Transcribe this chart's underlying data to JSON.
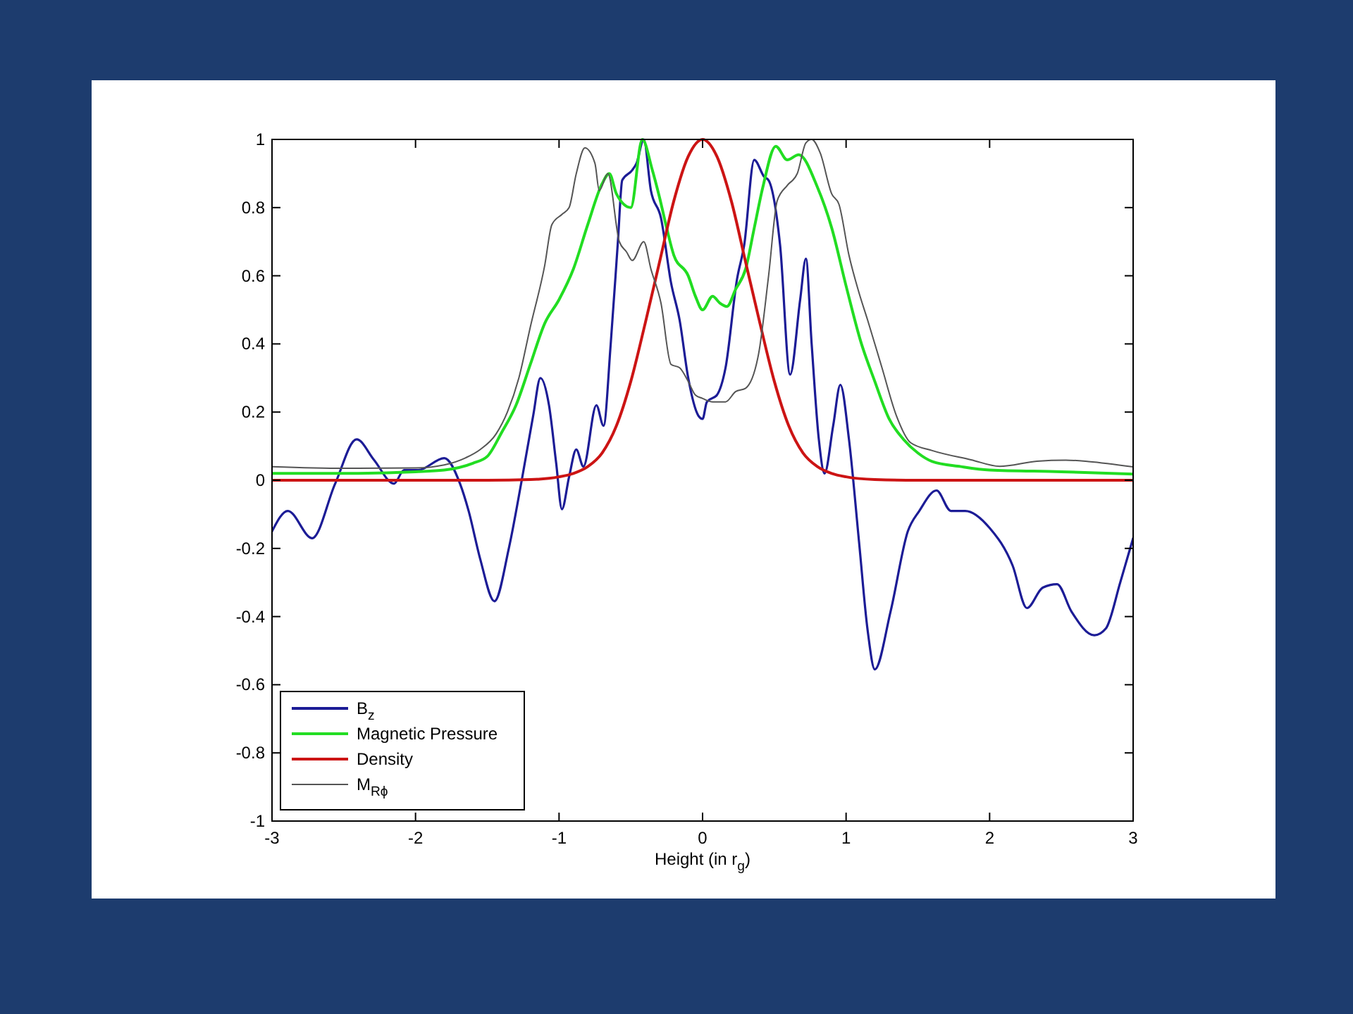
{
  "chart_data": {
    "type": "line",
    "xlabel": "Height (in r$_{g}$)",
    "xlim": [
      -3,
      3
    ],
    "ylim": [
      -1,
      1
    ],
    "xticks": [
      -3,
      -2,
      -1,
      0,
      1,
      2,
      3
    ],
    "yticks": [
      -1,
      -0.8,
      -0.6,
      -0.4,
      -0.2,
      0,
      0.2,
      0.4,
      0.6,
      0.8,
      1
    ],
    "legend": "bottom left",
    "series": [
      {
        "name": "B$_{z}$",
        "color": "#1c1c96",
        "x": [
          -3,
          -2.89,
          -2.72,
          -2.56,
          -2.41,
          -2.29,
          -2.15,
          -2.08,
          -1.98,
          -1.8,
          -1.69,
          -1.63,
          -1.55,
          -1.45,
          -1.35,
          -1.26,
          -1.18,
          -1.13,
          -1.07,
          -1.02,
          -0.98,
          -0.93,
          -0.88,
          -0.83,
          -0.74,
          -0.69,
          -0.64,
          -0.59,
          -0.56,
          -0.49,
          -0.46,
          -0.41,
          -0.36,
          -0.29,
          -0.22,
          -0.16,
          -0.1,
          -0.03,
          0,
          0.03,
          0.1,
          0.16,
          0.24,
          0.29,
          0.36,
          0.43,
          0.46,
          0.54,
          0.61,
          0.68,
          0.72,
          0.76,
          0.81,
          0.85,
          0.91,
          0.96,
          1.02,
          1.09,
          1.15,
          1.2,
          1.31,
          1.43,
          1.51,
          1.63,
          1.73,
          1.83,
          2,
          2.16,
          2.26,
          2.37,
          2.47,
          2.57,
          2.73,
          2.81,
          2.91,
          3
        ],
        "values": [
          -0.15,
          -0.09,
          -0.17,
          -0.01,
          0.12,
          0.06,
          -0.01,
          0.03,
          0.03,
          0.065,
          -0.01,
          -0.09,
          -0.23,
          -0.355,
          -0.2,
          0,
          0.19,
          0.3,
          0.22,
          0.05,
          -0.085,
          0.01,
          0.09,
          0.04,
          0.22,
          0.16,
          0.4,
          0.7,
          0.88,
          0.91,
          0.93,
          1,
          0.85,
          0.77,
          0.58,
          0.47,
          0.3,
          0.19,
          0.18,
          0.23,
          0.25,
          0.33,
          0.59,
          0.69,
          0.94,
          0.89,
          0.88,
          0.69,
          0.31,
          0.53,
          0.65,
          0.4,
          0.12,
          0.02,
          0.16,
          0.28,
          0.12,
          -0.18,
          -0.44,
          -0.555,
          -0.385,
          -0.15,
          -0.09,
          -0.03,
          -0.09,
          -0.09,
          -0.14,
          -0.25,
          -0.375,
          -0.315,
          -0.305,
          -0.385,
          -0.455,
          -0.435,
          -0.3,
          -0.17
        ]
      },
      {
        "name": "Magnetic Pressure",
        "color": "#22dd22",
        "x": [
          -3,
          -2.5,
          -2,
          -1.8,
          -1.6,
          -1.5,
          -1.4,
          -1.3,
          -1.2,
          -1.1,
          -1,
          -0.9,
          -0.8,
          -0.7,
          -0.65,
          -0.6,
          -0.5,
          -0.42,
          -0.35,
          -0.3,
          -0.25,
          -0.2,
          -0.1,
          -0.05,
          0,
          0.07,
          0.12,
          0.17,
          0.23,
          0.3,
          0.36,
          0.42,
          0.51,
          0.59,
          0.67,
          0.8,
          0.9,
          1,
          1.1,
          1.2,
          1.3,
          1.4,
          1.5,
          1.6,
          1.8,
          2,
          2.5,
          3
        ],
        "values": [
          0.02,
          0.02,
          0.025,
          0.03,
          0.05,
          0.07,
          0.14,
          0.22,
          0.34,
          0.46,
          0.53,
          0.62,
          0.75,
          0.87,
          0.9,
          0.84,
          0.8,
          1,
          0.91,
          0.83,
          0.74,
          0.66,
          0.6,
          0.54,
          0.5,
          0.54,
          0.52,
          0.51,
          0.56,
          0.62,
          0.74,
          0.86,
          0.98,
          0.94,
          0.955,
          0.86,
          0.74,
          0.57,
          0.41,
          0.29,
          0.18,
          0.12,
          0.08,
          0.055,
          0.04,
          0.03,
          0.025,
          0.018
        ]
      },
      {
        "name": "Density",
        "color": "#cc1414",
        "x": [
          -3,
          -2,
          -1.5,
          -1.2,
          -1,
          -0.9,
          -0.8,
          -0.7,
          -0.6,
          -0.5,
          -0.4,
          -0.3,
          -0.2,
          -0.1,
          0,
          0.1,
          0.2,
          0.3,
          0.4,
          0.5,
          0.6,
          0.7,
          0.8,
          0.9,
          1,
          1.2,
          1.5,
          2,
          3
        ],
        "values": [
          0,
          0,
          0,
          0.002,
          0.01,
          0.02,
          0.04,
          0.08,
          0.16,
          0.29,
          0.46,
          0.64,
          0.82,
          0.95,
          1,
          0.95,
          0.82,
          0.64,
          0.46,
          0.29,
          0.16,
          0.08,
          0.04,
          0.02,
          0.01,
          0.002,
          0,
          0,
          0
        ]
      },
      {
        "name": "M$_{Rϕ}$",
        "color": "#555555",
        "x": [
          -3,
          -2.5,
          -2,
          -1.8,
          -1.65,
          -1.55,
          -1.44,
          -1.36,
          -1.28,
          -1.2,
          -1.1,
          -1.05,
          -0.98,
          -0.93,
          -0.88,
          -0.82,
          -0.75,
          -0.72,
          -0.66,
          -0.58,
          -0.53,
          -0.49,
          -0.41,
          -0.36,
          -0.29,
          -0.22,
          -0.16,
          -0.1,
          -0.05,
          0,
          0.07,
          0.16,
          0.23,
          0.3,
          0.39,
          0.46,
          0.52,
          0.59,
          0.66,
          0.72,
          0.76,
          0.82,
          0.9,
          0.95,
          1.02,
          1.09,
          1.15,
          1.25,
          1.35,
          1.45,
          1.6,
          1.87,
          2.07,
          2.33,
          2.53,
          2.69,
          3
        ],
        "values": [
          0.04,
          0.035,
          0.036,
          0.045,
          0.066,
          0.09,
          0.135,
          0.2,
          0.3,
          0.45,
          0.63,
          0.75,
          0.78,
          0.8,
          0.9,
          0.975,
          0.93,
          0.85,
          0.9,
          0.7,
          0.67,
          0.645,
          0.7,
          0.62,
          0.52,
          0.34,
          0.33,
          0.29,
          0.25,
          0.24,
          0.23,
          0.23,
          0.26,
          0.27,
          0.37,
          0.6,
          0.82,
          0.865,
          0.9,
          0.99,
          1,
          0.96,
          0.84,
          0.81,
          0.66,
          0.55,
          0.47,
          0.33,
          0.19,
          0.11,
          0.087,
          0.06,
          0.041,
          0.056,
          0.059,
          0.055,
          0.039
        ]
      }
    ]
  }
}
